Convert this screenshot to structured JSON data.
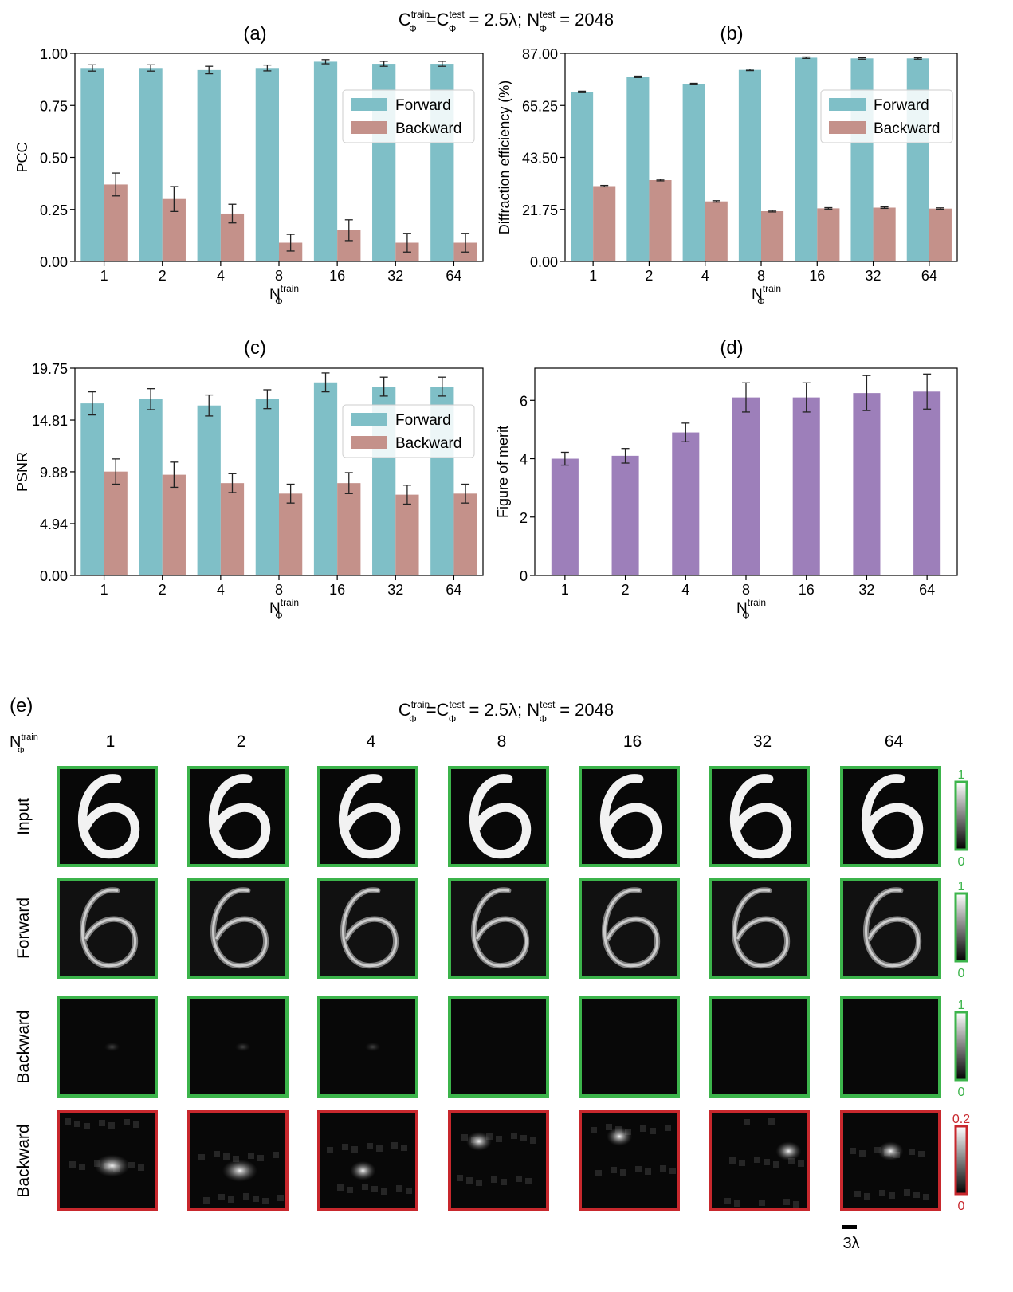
{
  "header": {
    "top_C": "C",
    "top_sup1": "train",
    "top_sub1": "Φ",
    "top_eq": "=C",
    "top_sup2": "test",
    "top_sub2": "Φ",
    "top_rest": " = 2.5λ;  N",
    "top_sup3": "test",
    "top_sub3": "Φ",
    "top_end": " = 2048"
  },
  "xlabel": {
    "main": "N",
    "sub": "Φ",
    "sup": "train"
  },
  "legend": {
    "forward": "Forward",
    "backward": "Backward"
  },
  "colors": {
    "forward": "#7fbfc7",
    "backward": "#c4918a",
    "merit": "#9d7fba",
    "green": "#3cb44b",
    "red": "#c8282d",
    "axis": "#000000"
  },
  "chart_data": [
    {
      "panel": "(a)",
      "type": "bar",
      "ylabel": "PCC",
      "categories": [
        "1",
        "2",
        "4",
        "8",
        "16",
        "32",
        "64"
      ],
      "ylim": [
        0,
        1.0
      ],
      "yticks": [
        "0.00",
        "0.25",
        "0.50",
        "0.75",
        "1.00"
      ],
      "legend_position": "upper-right",
      "series": [
        {
          "name": "Forward",
          "values": [
            0.93,
            0.93,
            0.92,
            0.93,
            0.96,
            0.95,
            0.95
          ],
          "errors": [
            0.015,
            0.015,
            0.018,
            0.014,
            0.01,
            0.012,
            0.012
          ]
        },
        {
          "name": "Backward",
          "values": [
            0.37,
            0.3,
            0.23,
            0.09,
            0.15,
            0.09,
            0.09
          ],
          "errors": [
            0.055,
            0.06,
            0.045,
            0.04,
            0.05,
            0.045,
            0.045
          ]
        }
      ]
    },
    {
      "panel": "(b)",
      "type": "bar",
      "ylabel": "Diffraction efficiency (%)",
      "categories": [
        "1",
        "2",
        "4",
        "8",
        "16",
        "32",
        "64"
      ],
      "ylim": [
        0,
        87
      ],
      "yticks": [
        "0.00",
        "21.75",
        "43.50",
        "65.25",
        "87.00"
      ],
      "legend_position": "upper-right",
      "series": [
        {
          "name": "Forward",
          "values": [
            70.9,
            77.2,
            74.2,
            80.1,
            85.2,
            84.9,
            84.9
          ],
          "errors": [
            0.3,
            0.3,
            0.3,
            0.3,
            0.3,
            0.3,
            0.3
          ]
        },
        {
          "name": "Backward",
          "values": [
            31.5,
            34.0,
            25.1,
            21.0,
            22.2,
            22.5,
            22.1
          ],
          "errors": [
            0.3,
            0.3,
            0.3,
            0.3,
            0.3,
            0.3,
            0.3
          ]
        }
      ]
    },
    {
      "panel": "(c)",
      "type": "bar",
      "ylabel": "PSNR",
      "categories": [
        "1",
        "2",
        "4",
        "8",
        "16",
        "32",
        "64"
      ],
      "ylim": [
        0,
        19.75
      ],
      "yticks": [
        "0.00",
        "4.94",
        "9.88",
        "14.81",
        "19.75"
      ],
      "legend_position": "upper-right",
      "series": [
        {
          "name": "Forward",
          "values": [
            16.4,
            16.8,
            16.2,
            16.8,
            18.4,
            18.0,
            18.0
          ],
          "errors": [
            1.1,
            1.0,
            1.0,
            0.9,
            0.9,
            0.9,
            0.9
          ]
        },
        {
          "name": "Backward",
          "values": [
            9.9,
            9.6,
            8.8,
            7.8,
            8.8,
            7.7,
            7.8
          ],
          "errors": [
            1.2,
            1.2,
            0.9,
            0.9,
            1.0,
            0.9,
            0.9
          ]
        }
      ]
    },
    {
      "panel": "(d)",
      "type": "bar",
      "ylabel": "Figure of merit",
      "categories": [
        "1",
        "2",
        "4",
        "8",
        "16",
        "32",
        "64"
      ],
      "ylim": [
        0,
        7.1
      ],
      "yticks": [
        "0",
        "2",
        "4",
        "6"
      ],
      "series": [
        {
          "name": "Figure of merit",
          "values": [
            4.0,
            4.1,
            4.9,
            6.1,
            6.1,
            6.25,
            6.3
          ],
          "errors": [
            0.22,
            0.25,
            0.32,
            0.5,
            0.5,
            0.6,
            0.6
          ]
        }
      ]
    }
  ],
  "panel_e": {
    "label": "(e)",
    "row_header": {
      "main": "N",
      "sub": "Φ",
      "sup": "train"
    },
    "columns": [
      "1",
      "2",
      "4",
      "8",
      "16",
      "32",
      "64"
    ],
    "rows": [
      "Input",
      "Forward",
      "Backward",
      "Backward"
    ],
    "colorbars": [
      {
        "max": "1",
        "min": "0"
      },
      {
        "max": "1",
        "min": "0"
      },
      {
        "max": "1",
        "min": "0"
      },
      {
        "max": "0.2",
        "min": "0"
      }
    ],
    "scale_bar": "3λ"
  }
}
